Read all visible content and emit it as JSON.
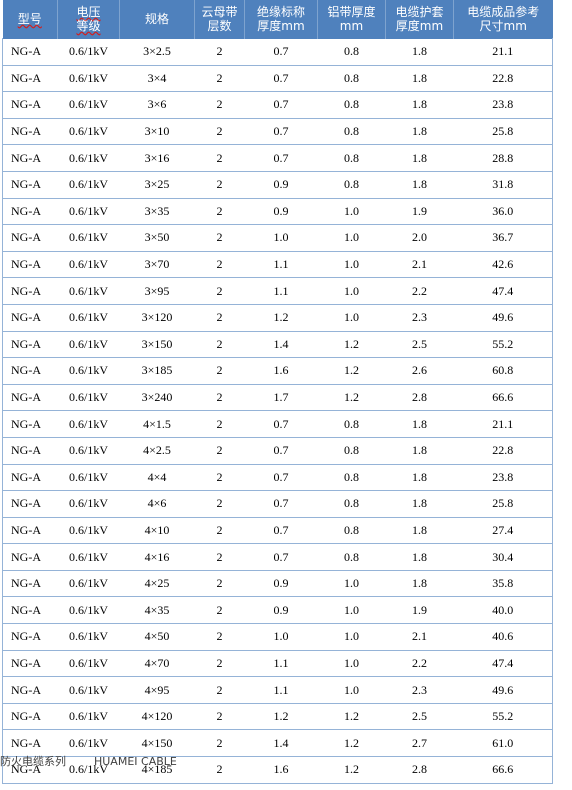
{
  "header": {
    "model": "型号",
    "voltage": [
      "电压",
      "等级"
    ],
    "spec": "规格",
    "mica": [
      "云母带",
      "层数"
    ],
    "insulation": [
      "绝缘标称",
      "厚度mm"
    ],
    "aluminum": [
      "铝带厚度",
      "mm"
    ],
    "sheath": [
      "电缆护套",
      "厚度mm"
    ],
    "outer": [
      "电缆成品参考",
      "尺寸mm"
    ]
  },
  "rows": [
    [
      "NG-A",
      "0.6/1kV",
      "3×2.5",
      "2",
      "0.7",
      "0.8",
      "1.8",
      "21.1"
    ],
    [
      "NG-A",
      "0.6/1kV",
      "3×4",
      "2",
      "0.7",
      "0.8",
      "1.8",
      "22.8"
    ],
    [
      "NG-A",
      "0.6/1kV",
      "3×6",
      "2",
      "0.7",
      "0.8",
      "1.8",
      "23.8"
    ],
    [
      "NG-A",
      "0.6/1kV",
      "3×10",
      "2",
      "0.7",
      "0.8",
      "1.8",
      "25.8"
    ],
    [
      "NG-A",
      "0.6/1kV",
      "3×16",
      "2",
      "0.7",
      "0.8",
      "1.8",
      "28.8"
    ],
    [
      "NG-A",
      "0.6/1kV",
      "3×25",
      "2",
      "0.9",
      "0.8",
      "1.8",
      "31.8"
    ],
    [
      "NG-A",
      "0.6/1kV",
      "3×35",
      "2",
      "0.9",
      "1.0",
      "1.9",
      "36.0"
    ],
    [
      "NG-A",
      "0.6/1kV",
      "3×50",
      "2",
      "1.0",
      "1.0",
      "2.0",
      "36.7"
    ],
    [
      "NG-A",
      "0.6/1kV",
      "3×70",
      "2",
      "1.1",
      "1.0",
      "2.1",
      "42.6"
    ],
    [
      "NG-A",
      "0.6/1kV",
      "3×95",
      "2",
      "1.1",
      "1.0",
      "2.2",
      "47.4"
    ],
    [
      "NG-A",
      "0.6/1kV",
      "3×120",
      "2",
      "1.2",
      "1.0",
      "2.3",
      "49.6"
    ],
    [
      "NG-A",
      "0.6/1kV",
      "3×150",
      "2",
      "1.4",
      "1.2",
      "2.5",
      "55.2"
    ],
    [
      "NG-A",
      "0.6/1kV",
      "3×185",
      "2",
      "1.6",
      "1.2",
      "2.6",
      "60.8"
    ],
    [
      "NG-A",
      "0.6/1kV",
      "3×240",
      "2",
      "1.7",
      "1.2",
      "2.8",
      "66.6"
    ],
    [
      "NG-A",
      "0.6/1kV",
      "4×1.5",
      "2",
      "0.7",
      "0.8",
      "1.8",
      "21.1"
    ],
    [
      "NG-A",
      "0.6/1kV",
      "4×2.5",
      "2",
      "0.7",
      "0.8",
      "1.8",
      "22.8"
    ],
    [
      "NG-A",
      "0.6/1kV",
      "4×4",
      "2",
      "0.7",
      "0.8",
      "1.8",
      "23.8"
    ],
    [
      "NG-A",
      "0.6/1kV",
      "4×6",
      "2",
      "0.7",
      "0.8",
      "1.8",
      "25.8"
    ],
    [
      "NG-A",
      "0.6/1kV",
      "4×10",
      "2",
      "0.7",
      "0.8",
      "1.8",
      "27.4"
    ],
    [
      "NG-A",
      "0.6/1kV",
      "4×16",
      "2",
      "0.7",
      "0.8",
      "1.8",
      "30.4"
    ],
    [
      "NG-A",
      "0.6/1kV",
      "4×25",
      "2",
      "0.9",
      "1.0",
      "1.8",
      "35.8"
    ],
    [
      "NG-A",
      "0.6/1kV",
      "4×35",
      "2",
      "0.9",
      "1.0",
      "1.9",
      "40.0"
    ],
    [
      "NG-A",
      "0.6/1kV",
      "4×50",
      "2",
      "1.0",
      "1.0",
      "2.1",
      "40.6"
    ],
    [
      "NG-A",
      "0.6/1kV",
      "4×70",
      "2",
      "1.1",
      "1.0",
      "2.2",
      "47.4"
    ],
    [
      "NG-A",
      "0.6/1kV",
      "4×95",
      "2",
      "1.1",
      "1.0",
      "2.3",
      "49.6"
    ],
    [
      "NG-A",
      "0.6/1kV",
      "4×120",
      "2",
      "1.2",
      "1.2",
      "2.5",
      "55.2"
    ],
    [
      "NG-A",
      "0.6/1kV",
      "4×150",
      "2",
      "1.4",
      "1.2",
      "2.7",
      "61.0"
    ],
    [
      "NG-A",
      "0.6/1kV",
      "4×185",
      "2",
      "1.6",
      "1.2",
      "2.8",
      "66.6"
    ]
  ],
  "footer": {
    "series": "防火电缆系列",
    "brand": "HUAMEI CABLE"
  },
  "colors": {
    "header_bg": "#4f81bd",
    "header_text": "#ffffff",
    "row_border": "#95b3d7"
  }
}
